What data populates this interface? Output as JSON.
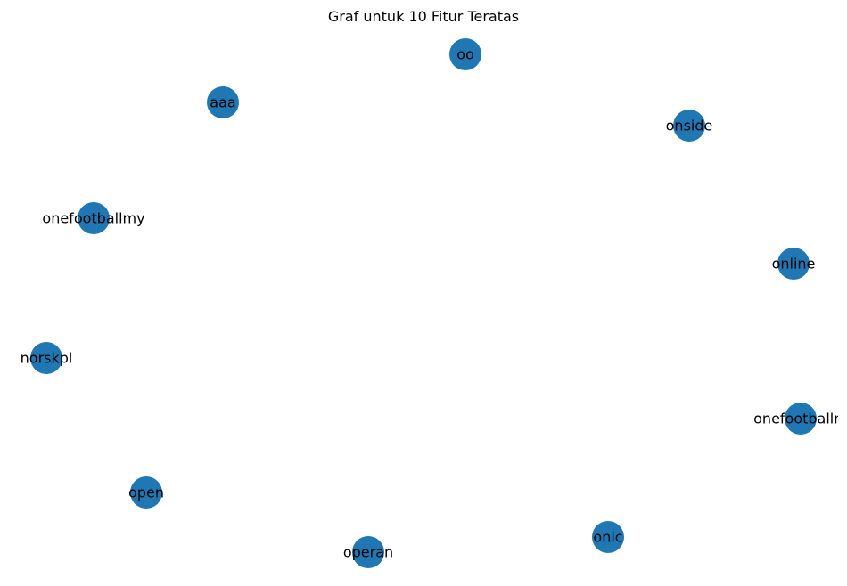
{
  "title": "Graf untuk 10 Fitur Teratas",
  "chart_data": {
    "type": "network",
    "edges": [],
    "nodes": [
      {
        "id": "oo",
        "label": "oo"
      },
      {
        "id": "aaa",
        "label": "aaa"
      },
      {
        "id": "onside",
        "label": "onside"
      },
      {
        "id": "onefootballmy",
        "label": "onefootballmy"
      },
      {
        "id": "online",
        "label": "online"
      },
      {
        "id": "norskpl",
        "label": "norskpl"
      },
      {
        "id": "onefootballm",
        "label": "onefootballm"
      },
      {
        "id": "open",
        "label": "open"
      },
      {
        "id": "onic",
        "label": "onic"
      },
      {
        "id": "operan",
        "label": "operan"
      }
    ]
  },
  "colors": {
    "node_fill": "#1f77b4",
    "label": "#000000",
    "background": "#ffffff"
  }
}
